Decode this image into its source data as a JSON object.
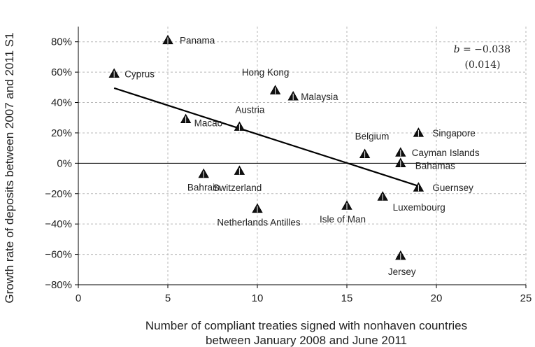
{
  "chart_data": {
    "type": "scatter",
    "title": "",
    "xlabel_line1": "Number of compliant treaties signed with nonhaven countries",
    "xlabel_line2": "between January 2008 and June 2011",
    "ylabel": "Growth rate of deposits between 2007 and 2011 S1",
    "xlim": [
      0,
      25
    ],
    "ylim": [
      -80,
      90
    ],
    "x_ticks": [
      0,
      5,
      10,
      15,
      20,
      25
    ],
    "y_ticks": [
      -80,
      -60,
      -40,
      -20,
      0,
      20,
      40,
      60,
      80
    ],
    "y_tick_suffix": "%",
    "grid": true,
    "grid_style": "dashed",
    "zero_line": true,
    "marker": "triangle",
    "marker_color": "#111111",
    "points": [
      {
        "label": "Panama",
        "x": 5,
        "y": 81
      },
      {
        "label": "Cyprus",
        "x": 2,
        "y": 59
      },
      {
        "label": "Hong Kong",
        "x": 11,
        "y": 48
      },
      {
        "label": "Malaysia",
        "x": 12,
        "y": 44
      },
      {
        "label": "Austria",
        "x": 9,
        "y": 24
      },
      {
        "label": "Macao",
        "x": 6,
        "y": 29
      },
      {
        "label": "Belgium",
        "x": 16,
        "y": 6
      },
      {
        "label": "Singapore",
        "x": 19,
        "y": 20
      },
      {
        "label": "Cayman Islands",
        "x": 18,
        "y": 7
      },
      {
        "label": "Bahamas",
        "x": 18,
        "y": 0
      },
      {
        "label": "Guernsey",
        "x": 19,
        "y": -16
      },
      {
        "label": "Bahrain",
        "x": 7,
        "y": -7
      },
      {
        "label": "Switzerland",
        "x": 9,
        "y": -5
      },
      {
        "label": "Luxembourg",
        "x": 17,
        "y": -22
      },
      {
        "label": "Netherlands Antilles",
        "x": 10,
        "y": -30
      },
      {
        "label": "Isle of Man",
        "x": 15,
        "y": -28
      },
      {
        "label": "Jersey",
        "x": 18,
        "y": -61
      }
    ],
    "fit_line": {
      "x": [
        2,
        19
      ],
      "y": [
        49.5,
        -15
      ]
    },
    "annotation": {
      "coef_symbol": "b",
      "coef_text": " = −0.038",
      "se_text": "(0.014)"
    }
  }
}
